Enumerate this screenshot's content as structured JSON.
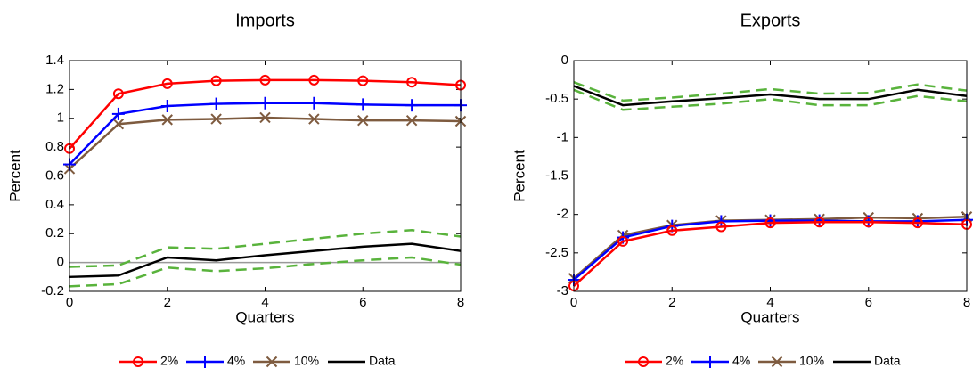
{
  "chart_data": [
    {
      "type": "line",
      "title": "Imports",
      "xlabel": "Quarters",
      "ylabel": "Percent",
      "x": [
        0,
        1,
        2,
        3,
        4,
        5,
        6,
        7,
        8
      ],
      "xlim": [
        0,
        8
      ],
      "xticks": [
        0,
        2,
        4,
        6,
        8
      ],
      "ylim": [
        -0.2,
        1.4
      ],
      "yticks": [
        -0.2,
        0,
        0.2,
        0.4,
        0.6,
        0.8,
        1,
        1.2,
        1.4
      ],
      "refline": 0,
      "refline_color": "#999999",
      "legend": "bottom",
      "series": [
        {
          "name": "2%",
          "color": "#ff0000",
          "marker": "o",
          "values": [
            0.79,
            1.17,
            1.24,
            1.26,
            1.265,
            1.265,
            1.26,
            1.25,
            1.23
          ]
        },
        {
          "name": "4%",
          "color": "#0000ff",
          "marker": "+",
          "values": [
            0.68,
            1.03,
            1.085,
            1.1,
            1.105,
            1.105,
            1.095,
            1.09,
            1.09
          ]
        },
        {
          "name": "10%",
          "color": "#7e5b3f",
          "marker": "x",
          "values": [
            0.65,
            0.96,
            0.99,
            0.995,
            1.005,
            0.995,
            0.985,
            0.985,
            0.98
          ]
        },
        {
          "name": "Data",
          "color": "#000000",
          "values": [
            -0.1,
            -0.09,
            0.035,
            0.015,
            0.05,
            0.08,
            0.11,
            0.13,
            0.08
          ]
        }
      ],
      "bands": {
        "color": "#59b33c",
        "upper": [
          -0.03,
          -0.02,
          0.105,
          0.095,
          0.13,
          0.165,
          0.2,
          0.225,
          0.18
        ],
        "lower": [
          -0.165,
          -0.15,
          -0.035,
          -0.06,
          -0.04,
          -0.01,
          0.015,
          0.035,
          -0.015
        ]
      }
    },
    {
      "type": "line",
      "title": "Exports",
      "xlabel": "Quarters",
      "ylabel": "Percent",
      "x": [
        0,
        1,
        2,
        3,
        4,
        5,
        6,
        7,
        8
      ],
      "xlim": [
        0,
        8
      ],
      "xticks": [
        0,
        2,
        4,
        6,
        8
      ],
      "ylim": [
        -3,
        0
      ],
      "yticks": [
        -3,
        -2.5,
        -2,
        -1.5,
        -1,
        -0.5,
        0
      ],
      "legend": "bottom",
      "series": [
        {
          "name": "2%",
          "color": "#ff0000",
          "marker": "o",
          "values": [
            -2.93,
            -2.35,
            -2.21,
            -2.16,
            -2.11,
            -2.1,
            -2.1,
            -2.11,
            -2.13
          ]
        },
        {
          "name": "4%",
          "color": "#0000ff",
          "marker": "+",
          "values": [
            -2.85,
            -2.3,
            -2.15,
            -2.09,
            -2.08,
            -2.08,
            -2.09,
            -2.09,
            -2.07
          ]
        },
        {
          "name": "10%",
          "color": "#7e5b3f",
          "marker": "x",
          "values": [
            -2.83,
            -2.27,
            -2.14,
            -2.08,
            -2.07,
            -2.06,
            -2.04,
            -2.05,
            -2.03
          ]
        },
        {
          "name": "Data",
          "color": "#000000",
          "values": [
            -0.33,
            -0.58,
            -0.53,
            -0.49,
            -0.44,
            -0.5,
            -0.5,
            -0.38,
            -0.46
          ]
        }
      ],
      "bands": {
        "color": "#59b33c",
        "upper": [
          -0.28,
          -0.52,
          -0.48,
          -0.43,
          -0.37,
          -0.43,
          -0.42,
          -0.31,
          -0.39
        ],
        "lower": [
          -0.38,
          -0.64,
          -0.6,
          -0.56,
          -0.5,
          -0.58,
          -0.58,
          -0.46,
          -0.53
        ]
      }
    }
  ]
}
